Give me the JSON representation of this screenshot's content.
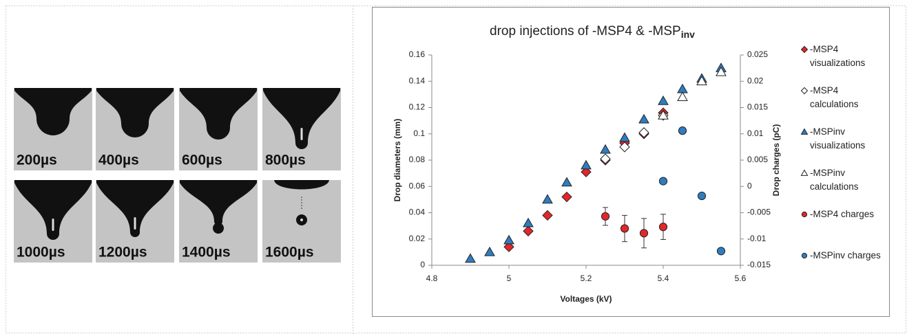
{
  "images": [
    {
      "label": "200µs"
    },
    {
      "label": "400µs"
    },
    {
      "label": "600µs"
    },
    {
      "label": "800µs"
    },
    {
      "label": "1000µs"
    },
    {
      "label": "1200µs"
    },
    {
      "label": "1400µs"
    },
    {
      "label": "1600µs"
    }
  ],
  "chart_data": {
    "type": "scatter",
    "title": "drop injections of -MSP4 & -MSP",
    "title_subscript": "inv",
    "xlabel": "Voltages (kV)",
    "ylabel": "Drop diameters (mm)",
    "y2label": "Drop charges (pC)",
    "xlim": [
      4.8,
      5.6
    ],
    "xticks": [
      4.8,
      5,
      5.2,
      5.4,
      5.6
    ],
    "ylim": [
      0,
      0.16
    ],
    "yticks": [
      0,
      0.02,
      0.04,
      0.06,
      0.08,
      0.1,
      0.12,
      0.14,
      0.16
    ],
    "y2lim": [
      -0.015,
      0.025
    ],
    "y2ticks": [
      -0.015,
      -0.01,
      -0.005,
      0,
      0.005,
      0.01,
      0.015,
      0.02,
      0.025
    ],
    "grid": false,
    "legend": "right",
    "series": [
      {
        "name": "-MSP4 visualizations",
        "marker": "diamond",
        "color": "#e3262b",
        "x": [
          5,
          5.05,
          5.1,
          5.15,
          5.2,
          5.25,
          5.3,
          5.35,
          5.4
        ],
        "values": [
          0.014,
          0.026,
          0.038,
          0.052,
          0.071,
          0.08,
          0.093,
          0.1,
          0.116
        ]
      },
      {
        "name": "-MSP4 calculations",
        "marker": "diamond",
        "color": "#ffffff",
        "x": [
          5.25,
          5.3,
          5.35,
          5.4
        ],
        "values": [
          0.081,
          0.09,
          0.101,
          0.114
        ]
      },
      {
        "name": "-MSPinv visualizations",
        "marker": "triangle",
        "color": "#2f7cc0",
        "x": [
          4.9,
          4.95,
          5,
          5.05,
          5.1,
          5.15,
          5.2,
          5.25,
          5.3,
          5.35,
          5.4,
          5.45,
          5.5,
          5.55
        ],
        "values": [
          0.005,
          0.01,
          0.019,
          0.032,
          0.05,
          0.063,
          0.076,
          0.088,
          0.097,
          0.111,
          0.125,
          0.134,
          0.142,
          0.15
        ]
      },
      {
        "name": "-MSPinv calculations",
        "marker": "triangle",
        "color": "#ffffff",
        "x": [
          5.4,
          5.45,
          5.5,
          5.55
        ],
        "values": [
          0.114,
          0.128,
          0.14,
          0.147
        ]
      },
      {
        "name": "-MSP4 charges",
        "marker": "circle",
        "color": "#e3262b",
        "axis": "y2",
        "x": [
          5.25,
          5.3,
          5.35,
          5.4
        ],
        "values": [
          -0.0057,
          -0.008,
          -0.0089,
          -0.0077
        ],
        "errors": [
          0.0017,
          0.0025,
          0.0028,
          0.0024
        ]
      },
      {
        "name": "-MSPinv charges",
        "marker": "circle",
        "color": "#2f7cc0",
        "axis": "y2",
        "x": [
          5.4,
          5.45,
          5.5,
          5.55
        ],
        "values": [
          0.001,
          0.0106,
          -0.0018,
          -0.0123
        ]
      }
    ]
  }
}
